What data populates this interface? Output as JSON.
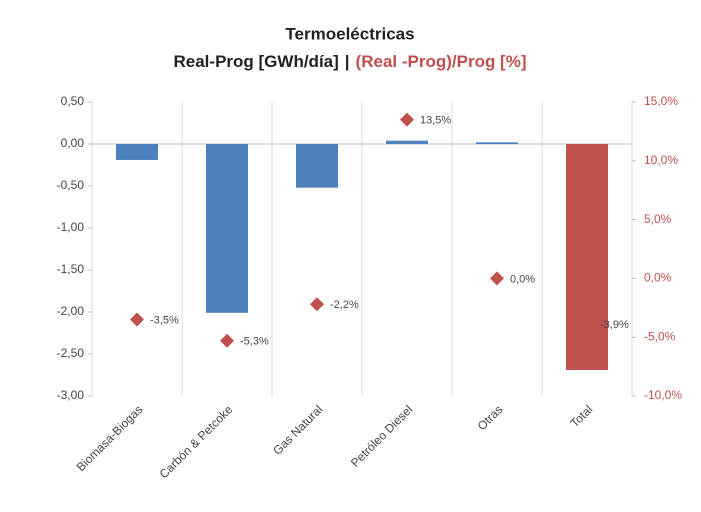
{
  "chart_data": {
    "type": "bar_scatter",
    "title": "Termoeléctricas",
    "subtitle_separator": "|",
    "categories": [
      "Biomasa-Biogas",
      "Carbón & Petcoke",
      "Gas Natural",
      "Petróleo Diesel",
      "Otras",
      "Total"
    ],
    "series": [
      {
        "name": "Real-Prog [GWh/día]",
        "type": "bar",
        "color": "#4f81bd",
        "colors": [
          "#4f81bd",
          "#4f81bd",
          "#4f81bd",
          "#4f81bd",
          "#4f81bd",
          "#c0504d"
        ],
        "values": [
          -0.19,
          -2.01,
          -0.52,
          0.04,
          0.02,
          -2.69
        ]
      },
      {
        "name": "(Real -Prog)/Prog [%]",
        "type": "scatter",
        "axis": "y2",
        "color": "#c0504d",
        "values": [
          -3.5,
          -5.3,
          -2.2,
          13.5,
          0.0,
          -3.9
        ],
        "value_labels": [
          "-3,5%",
          "-5,3%",
          "-2,2%",
          "13,5%",
          "0,0%",
          "-3,9%"
        ]
      }
    ],
    "ylim": [
      -3,
      0.5
    ],
    "yticks": [
      {
        "value": 0.5,
        "label": "0,50"
      },
      {
        "value": 0,
        "label": "0,00"
      },
      {
        "value": -0.5,
        "label": "-0,50"
      },
      {
        "value": -1,
        "label": "-1,00"
      },
      {
        "value": -1.5,
        "label": "-1,50"
      },
      {
        "value": -2,
        "label": "-2,00"
      },
      {
        "value": -2.5,
        "label": "-2,50"
      },
      {
        "value": -3,
        "label": "-3,00"
      }
    ],
    "y2lim": [
      -10,
      15
    ],
    "y2ticks": [
      {
        "value": 15,
        "label": "15,0%"
      },
      {
        "value": 10,
        "label": "10,0%"
      },
      {
        "value": 5,
        "label": "5,0%"
      },
      {
        "value": 0,
        "label": "0,0%"
      },
      {
        "value": -5,
        "label": "-5,0%"
      },
      {
        "value": -10,
        "label": "-10,0%"
      }
    ]
  }
}
